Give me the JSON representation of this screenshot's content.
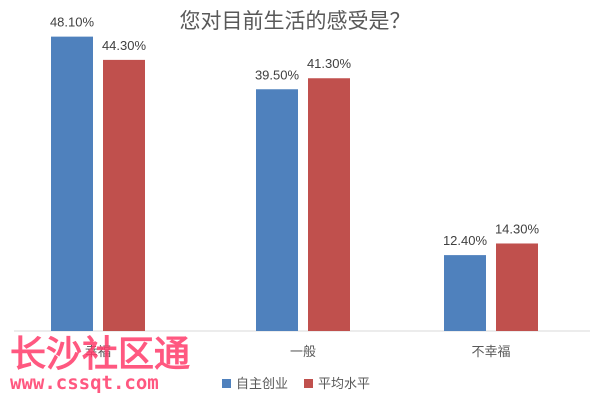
{
  "chart_data": {
    "type": "bar",
    "title": "您对目前生活的感受是？",
    "categories": [
      "幸福",
      "一般",
      "不幸福"
    ],
    "series": [
      {
        "name": "自主创业",
        "values": [
          48.1,
          39.5,
          12.4
        ],
        "labels": [
          "48.10%",
          "39.50%",
          "12.40%"
        ],
        "color": "#4f81bd"
      },
      {
        "name": "平均水平",
        "values": [
          44.3,
          41.3,
          14.3
        ],
        "labels": [
          "44.30%",
          "41.30%",
          "14.30%"
        ],
        "color": "#c0504d"
      }
    ],
    "ylim": [
      0,
      50
    ],
    "grid": false,
    "legend": "bottom"
  },
  "watermark": {
    "text": "长沙社区通",
    "url": "www.cssqt.com"
  }
}
